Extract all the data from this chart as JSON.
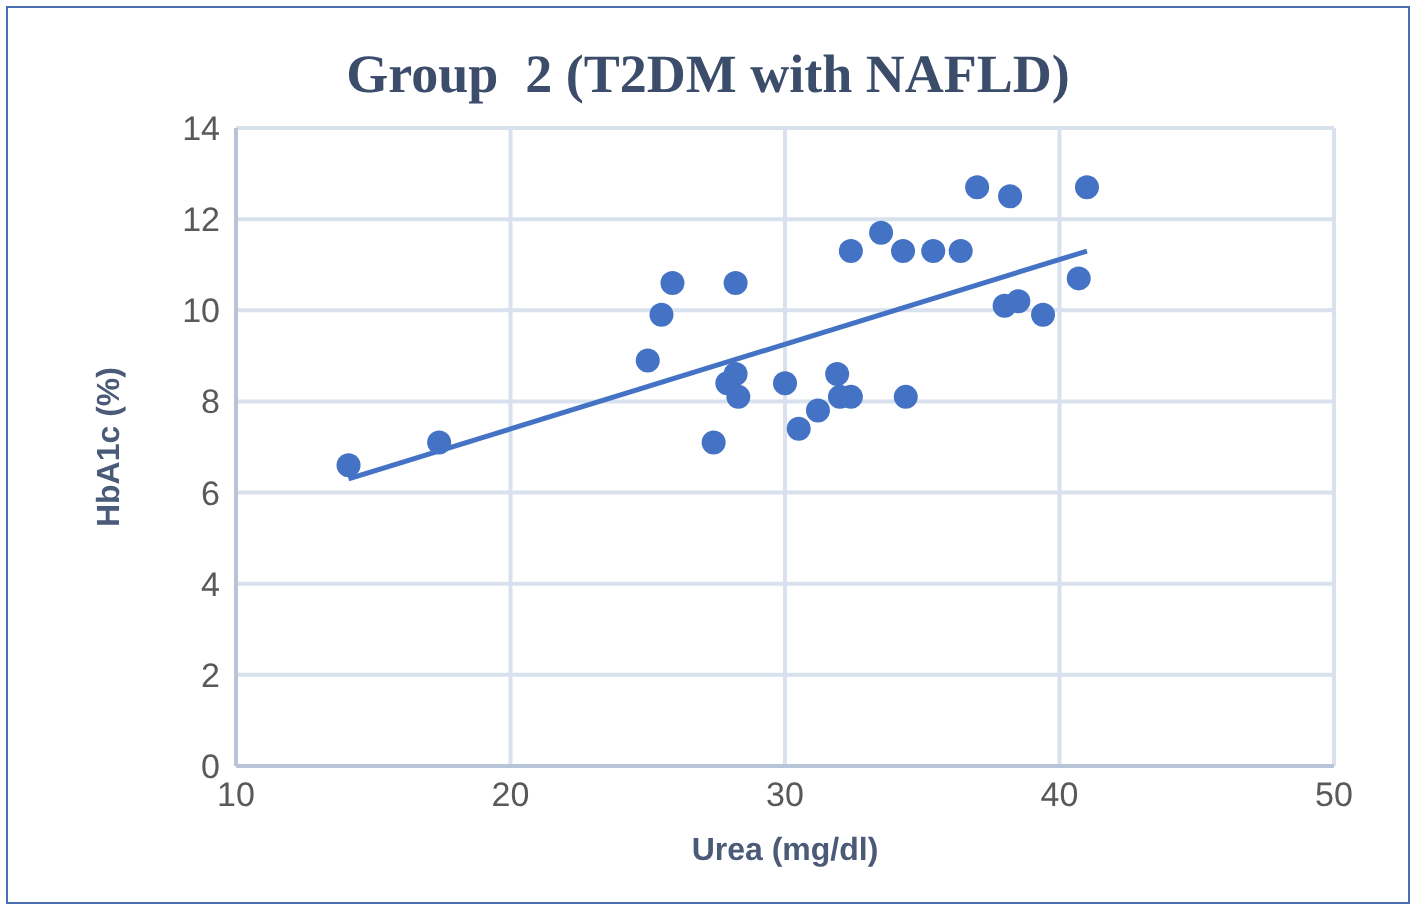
{
  "chart_data": {
    "type": "scatter",
    "title": "Group  2 (T2DM with NAFLD)",
    "xlabel": "Urea (mg/dl)",
    "ylabel": "HbA1c (%)",
    "xlim": [
      10,
      50
    ],
    "xticks": [
      10,
      20,
      30,
      40,
      50
    ],
    "ylim": [
      0,
      14
    ],
    "yticks": [
      0,
      2,
      4,
      6,
      8,
      10,
      12,
      14
    ],
    "grid": true,
    "legend": false,
    "marker": "circle",
    "series": [
      {
        "type": "scatter",
        "color": "#4472c4",
        "x": [
          14.1,
          17.4,
          25.0,
          25.5,
          25.9,
          27.4,
          27.9,
          28.2,
          28.3,
          28.2,
          30.0,
          30.5,
          31.2,
          31.9,
          32.0,
          32.4,
          32.4,
          33.5,
          34.3,
          34.4,
          35.4,
          36.4,
          37.0,
          38.2,
          38.0,
          38.5,
          39.4,
          40.7,
          41.0
        ],
        "values": [
          6.6,
          7.1,
          8.9,
          9.9,
          10.6,
          7.1,
          8.4,
          8.6,
          8.1,
          10.6,
          8.4,
          7.4,
          7.8,
          8.6,
          8.1,
          8.1,
          11.3,
          11.7,
          11.3,
          8.1,
          11.3,
          11.3,
          12.7,
          12.5,
          10.1,
          10.2,
          9.9,
          10.7,
          12.7
        ]
      },
      {
        "type": "line",
        "color": "#4472c4",
        "marker": "none",
        "line_style": "solid",
        "x": [
          14.1,
          41.0
        ],
        "values": [
          6.3,
          11.3
        ]
      }
    ]
  }
}
